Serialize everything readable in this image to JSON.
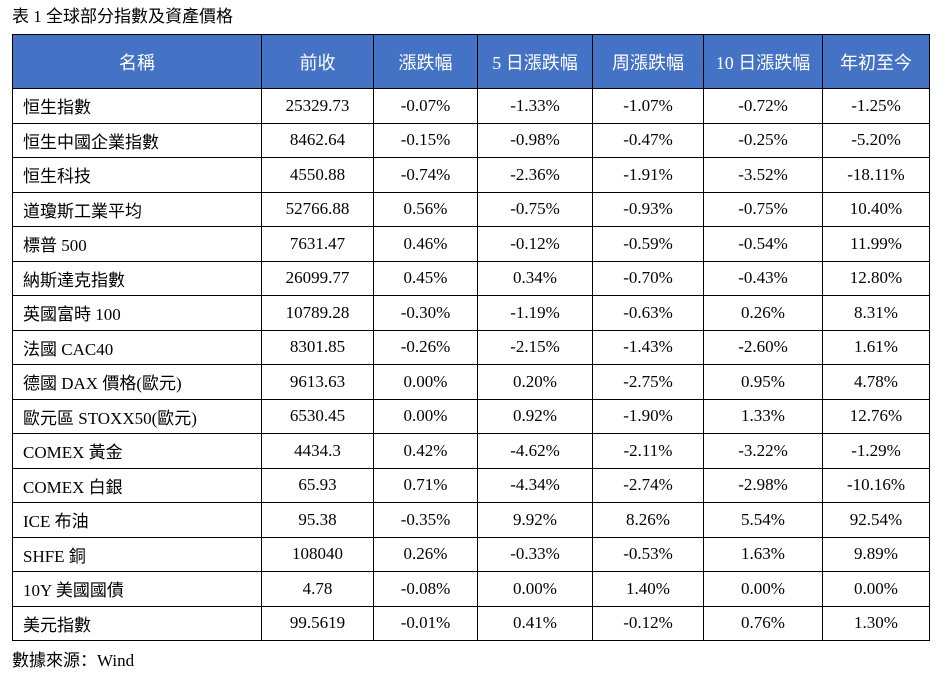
{
  "caption": "表 1 全球部分指數及資產價格",
  "headers": [
    "名稱",
    "前收",
    "漲跌幅",
    "5 日漲跌幅",
    "周漲跌幅",
    "10 日漲跌幅",
    "年初至今"
  ],
  "rows": [
    [
      "恒生指數",
      "25329.73",
      "-0.07%",
      "-1.33%",
      "-1.07%",
      "-0.72%",
      "-1.25%"
    ],
    [
      "恒生中國企業指數",
      "8462.64",
      "-0.15%",
      "-0.98%",
      "-0.47%",
      "-0.25%",
      "-5.20%"
    ],
    [
      "恒生科技",
      "4550.88",
      "-0.74%",
      "-2.36%",
      "-1.91%",
      "-3.52%",
      "-18.11%"
    ],
    [
      "道瓊斯工業平均",
      "52766.88",
      "0.56%",
      "-0.75%",
      "-0.93%",
      "-0.75%",
      "10.40%"
    ],
    [
      "標普 500",
      "7631.47",
      "0.46%",
      "-0.12%",
      "-0.59%",
      "-0.54%",
      "11.99%"
    ],
    [
      "納斯達克指數",
      "26099.77",
      "0.45%",
      "0.34%",
      "-0.70%",
      "-0.43%",
      "12.80%"
    ],
    [
      "英國富時 100",
      "10789.28",
      "-0.30%",
      "-1.19%",
      "-0.63%",
      "0.26%",
      "8.31%"
    ],
    [
      "法國 CAC40",
      "8301.85",
      "-0.26%",
      "-2.15%",
      "-1.43%",
      "-2.60%",
      "1.61%"
    ],
    [
      "德國 DAX 價格(歐元)",
      "9613.63",
      "0.00%",
      "0.20%",
      "-2.75%",
      "0.95%",
      "4.78%"
    ],
    [
      "歐元區 STOXX50(歐元)",
      "6530.45",
      "0.00%",
      "0.92%",
      "-1.90%",
      "1.33%",
      "12.76%"
    ],
    [
      "COMEX 黃金",
      "4434.3",
      "0.42%",
      "-4.62%",
      "-2.11%",
      "-3.22%",
      "-1.29%"
    ],
    [
      "COMEX 白銀",
      "65.93",
      "0.71%",
      "-4.34%",
      "-2.74%",
      "-2.98%",
      "-10.16%"
    ],
    [
      "ICE 布油",
      "95.38",
      "-0.35%",
      "9.92%",
      "8.26%",
      "5.54%",
      "92.54%"
    ],
    [
      "SHFE 銅",
      "108040",
      "0.26%",
      "-0.33%",
      "-0.53%",
      "1.63%",
      "9.89%"
    ],
    [
      "10Y  美國國債",
      "4.78",
      "-0.08%",
      "0.00%",
      "1.40%",
      "0.00%",
      "0.00%"
    ],
    [
      "美元指數",
      "99.5619",
      "-0.01%",
      "0.41%",
      "-0.12%",
      "0.76%",
      "1.30%"
    ]
  ],
  "source": "數據來源：Wind",
  "colors": {
    "header_bg": "#4472c4",
    "header_text": "#ffffff",
    "border": "#000000"
  }
}
